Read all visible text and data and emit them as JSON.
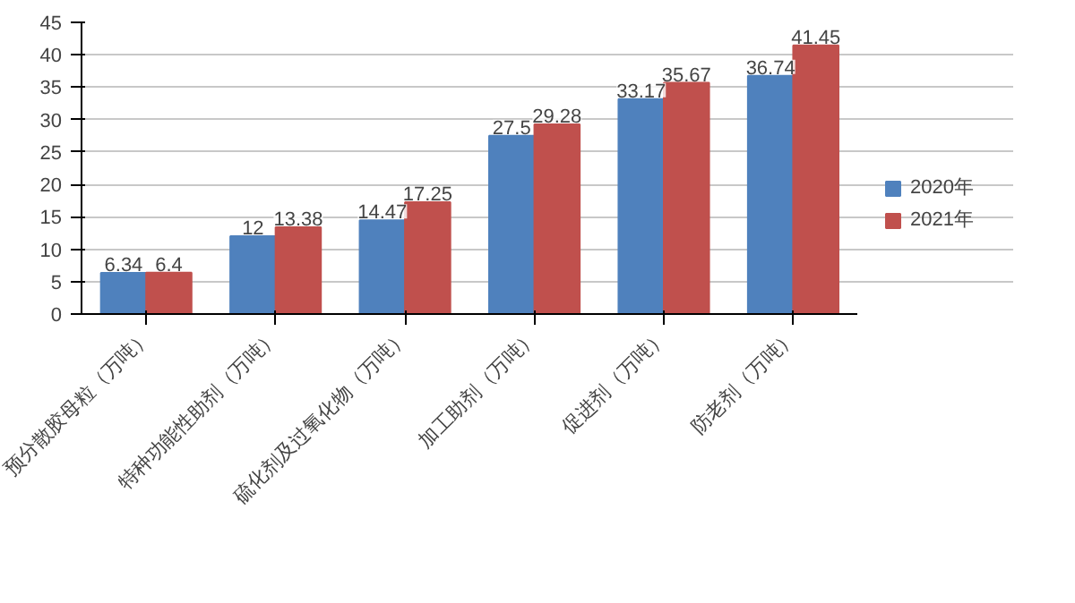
{
  "chart_data": {
    "type": "bar",
    "categories": [
      "预分散胶母粒（万吨）",
      "特种功能性助剂（万吨）",
      "硫化剂及过氧化物（万吨）",
      "加工助剂（万吨）",
      "促进剂（万吨）",
      "防老剂（万吨）"
    ],
    "series": [
      {
        "name": "2020年",
        "color": "#4f81bd",
        "values": [
          6.34,
          12,
          14.47,
          27.5,
          33.17,
          36.74
        ]
      },
      {
        "name": "2021年",
        "color": "#c0504d",
        "values": [
          6.4,
          13.38,
          17.25,
          29.28,
          35.67,
          41.45
        ]
      }
    ],
    "ylim": [
      0,
      45
    ],
    "yticks": [
      0,
      5,
      10,
      15,
      20,
      25,
      30,
      35,
      40,
      45
    ],
    "grid": "y",
    "legend": "right",
    "data_labels": true
  }
}
